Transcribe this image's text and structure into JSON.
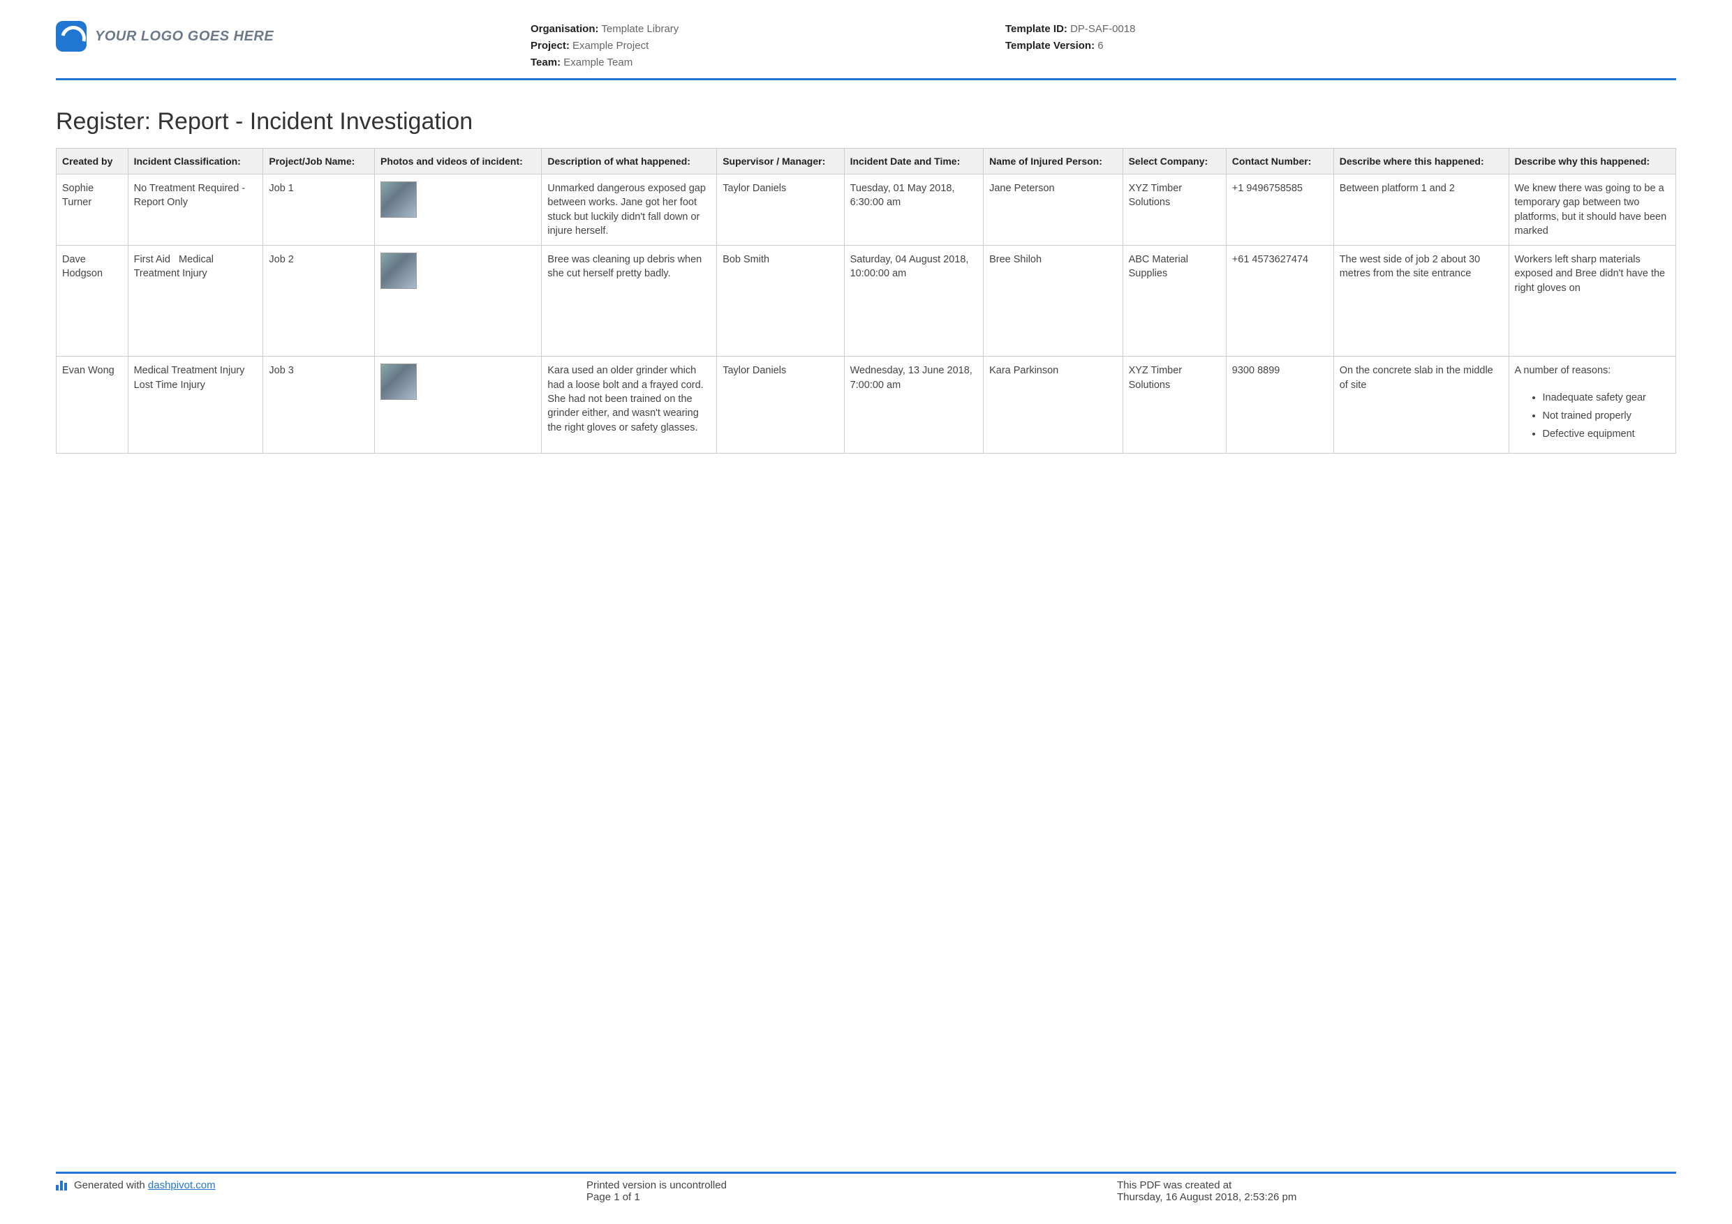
{
  "header": {
    "logo_text": "YOUR LOGO GOES HERE",
    "org_label": "Organisation:",
    "org_value": "Template Library",
    "project_label": "Project:",
    "project_value": "Example Project",
    "team_label": "Team:",
    "team_value": "Example Team",
    "template_id_label": "Template ID:",
    "template_id_value": "DP-SAF-0018",
    "template_version_label": "Template Version:",
    "template_version_value": "6"
  },
  "title": "Register: Report - Incident Investigation",
  "columns": [
    "Created by",
    "Incident Classification:",
    "Project/Job Name:",
    "Photos and videos of incident:",
    "Description of what happened:",
    "Supervisor / Manager:",
    "Incident Date and Time:",
    "Name of Injured Person:",
    "Select Company:",
    "Contact Number:",
    "Describe where this happened:",
    "Describe why this happened:"
  ],
  "rows": [
    {
      "created_by": "Sophie Turner",
      "classification": "No Treatment Required - Report Only",
      "job": "Job 1",
      "description": "Unmarked dangerous exposed gap between works. Jane got her foot stuck but luckily didn't fall down or injure herself.",
      "supervisor": "Taylor Daniels",
      "datetime": "Tuesday, 01 May 2018, 6:30:00 am",
      "injured": "Jane Peterson",
      "company": "XYZ Timber Solutions",
      "contact": "+1 9496758585",
      "where": "Between platform 1 and 2",
      "why_text": "We knew there was going to be a temporary gap between two platforms, but it should have been marked",
      "why_list": []
    },
    {
      "created_by": "Dave Hodgson",
      "classification": "First Aid   Medical Treatment Injury",
      "job": "Job 2",
      "description": "Bree was cleaning up debris when she cut herself pretty badly.",
      "supervisor": "Bob Smith",
      "datetime": "Saturday, 04 August 2018, 10:00:00 am",
      "injured": "Bree Shiloh",
      "company": "ABC Material Supplies",
      "contact": "+61 4573627474",
      "where": "The west side of job 2 about 30 metres from the site entrance",
      "why_text": "Workers left sharp materials exposed and Bree didn't have the right gloves on",
      "why_list": []
    },
    {
      "created_by": "Evan Wong",
      "classification": "Medical Treatment Injury   Lost Time Injury",
      "job": "Job 3",
      "description": "Kara used an older grinder which had a loose bolt and a frayed cord. She had not been trained on the grinder either, and wasn't wearing the right gloves or safety glasses.",
      "supervisor": "Taylor Daniels",
      "datetime": "Wednesday, 13 June 2018, 7:00:00 am",
      "injured": "Kara Parkinson",
      "company": "XYZ Timber Solutions",
      "contact": "9300 8899",
      "where": "On the concrete slab in the middle of site",
      "why_text": "A number of reasons:",
      "why_list": [
        "Inadequate safety gear",
        "Not trained properly",
        "Defective equipment"
      ]
    }
  ],
  "footer": {
    "generated_prefix": "Generated with ",
    "generated_link": "dashpivot.com",
    "uncontrolled": "Printed version is uncontrolled",
    "page": "Page 1 of 1",
    "created_label": "This PDF was created at",
    "created_value": "Thursday, 16 August 2018, 2:53:26 pm"
  }
}
